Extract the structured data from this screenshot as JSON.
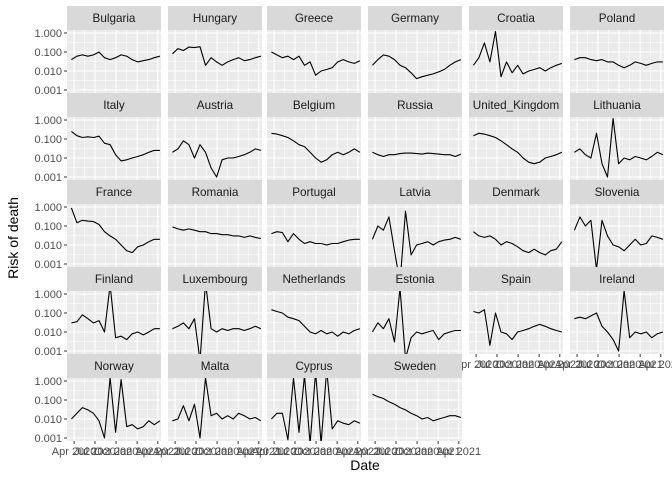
{
  "chart_data": {
    "type": "line",
    "xlabel": "Date",
    "ylabel": "Risk of death",
    "y_scale": "log10",
    "ylim": [
      0.001,
      1.0
    ],
    "y_ticks": [
      1.0,
      0.1,
      0.01,
      0.001
    ],
    "y_tick_labels": [
      "1.000",
      "0.100",
      "0.010",
      "0.001"
    ],
    "x_range": [
      "2020-03-01",
      "2021-04-15"
    ],
    "x_ticks": [
      "2020-04-01",
      "2020-07-01",
      "2020-10-01",
      "2021-01-01",
      "2021-04-01"
    ],
    "x_tick_labels": [
      "Apr 2020",
      "Jul 2020",
      "Oct 2020",
      "Jan 2021",
      "Apr 2021"
    ],
    "grid": true,
    "facets": [
      {
        "name": "Bulgaria",
        "values": [
          0.04,
          0.06,
          0.07,
          0.06,
          0.07,
          0.1,
          0.05,
          0.04,
          0.05,
          0.07,
          0.06,
          0.04,
          0.03,
          0.035,
          0.04,
          0.05,
          0.06
        ]
      },
      {
        "name": "Hungary",
        "values": [
          0.08,
          0.15,
          0.12,
          0.18,
          0.17,
          0.19,
          0.02,
          0.05,
          0.03,
          0.02,
          0.03,
          0.04,
          0.05,
          0.035,
          0.04,
          0.05,
          0.06
        ]
      },
      {
        "name": "Greece",
        "values": [
          0.1,
          0.07,
          0.05,
          0.06,
          0.04,
          0.06,
          0.02,
          0.03,
          0.006,
          0.01,
          0.012,
          0.015,
          0.03,
          0.04,
          0.03,
          0.025,
          0.035
        ]
      },
      {
        "name": "Germany",
        "values": [
          0.02,
          0.04,
          0.07,
          0.06,
          0.04,
          0.02,
          0.015,
          0.008,
          0.004,
          0.005,
          0.006,
          0.007,
          0.009,
          0.012,
          0.02,
          0.03,
          0.04
        ]
      },
      {
        "name": "Croatia",
        "values": [
          0.02,
          0.05,
          0.3,
          0.03,
          1.2,
          0.005,
          0.03,
          0.008,
          0.02,
          0.007,
          0.01,
          0.012,
          0.015,
          0.01,
          0.015,
          0.02,
          0.025
        ]
      },
      {
        "name": "Poland",
        "values": [
          0.04,
          0.05,
          0.05,
          0.04,
          0.035,
          0.04,
          0.03,
          0.03,
          0.02,
          0.015,
          0.02,
          0.03,
          0.025,
          0.02,
          0.025,
          0.03,
          0.03
        ]
      },
      {
        "name": "Italy",
        "values": [
          0.25,
          0.15,
          0.12,
          0.13,
          0.12,
          0.14,
          0.06,
          0.05,
          0.015,
          0.007,
          0.008,
          0.01,
          0.012,
          0.015,
          0.02,
          0.025,
          0.025
        ]
      },
      {
        "name": "Austria",
        "values": [
          0.02,
          0.03,
          0.08,
          0.05,
          0.01,
          0.05,
          0.02,
          0.003,
          0.001,
          0.008,
          0.01,
          0.01,
          0.012,
          0.015,
          0.02,
          0.03,
          0.025
        ]
      },
      {
        "name": "Belgium",
        "values": [
          0.2,
          0.18,
          0.15,
          0.12,
          0.08,
          0.05,
          0.04,
          0.02,
          0.01,
          0.006,
          0.008,
          0.015,
          0.02,
          0.015,
          0.02,
          0.03,
          0.02
        ]
      },
      {
        "name": "Russia",
        "values": [
          0.02,
          0.015,
          0.012,
          0.015,
          0.015,
          0.017,
          0.018,
          0.018,
          0.017,
          0.016,
          0.018,
          0.017,
          0.016,
          0.015,
          0.015,
          0.012,
          0.016
        ]
      },
      {
        "name": "United_Kingdom",
        "values": [
          0.15,
          0.2,
          0.18,
          0.15,
          0.12,
          0.08,
          0.05,
          0.03,
          0.02,
          0.01,
          0.006,
          0.005,
          0.006,
          0.01,
          0.012,
          0.015,
          0.02
        ]
      },
      {
        "name": "Lithuania",
        "values": [
          0.02,
          0.03,
          0.015,
          0.01,
          0.2,
          0.005,
          0.001,
          1.2,
          0.005,
          0.01,
          0.008,
          0.012,
          0.01,
          0.008,
          0.012,
          0.02,
          0.015
        ]
      },
      {
        "name": "France",
        "values": [
          0.9,
          0.15,
          0.2,
          0.18,
          0.17,
          0.12,
          0.05,
          0.03,
          0.02,
          0.01,
          0.005,
          0.004,
          0.008,
          0.01,
          0.015,
          0.02,
          0.02
        ]
      },
      {
        "name": "Romania",
        "values": [
          0.09,
          0.07,
          0.06,
          0.07,
          0.06,
          0.05,
          0.05,
          0.04,
          0.04,
          0.035,
          0.035,
          0.03,
          0.03,
          0.025,
          0.03,
          0.025,
          0.022
        ]
      },
      {
        "name": "Portugal",
        "values": [
          0.04,
          0.05,
          0.045,
          0.015,
          0.04,
          0.02,
          0.012,
          0.015,
          0.012,
          0.012,
          0.01,
          0.012,
          0.012,
          0.015,
          0.018,
          0.02,
          0.02
        ]
      },
      {
        "name": "Latvia",
        "values": [
          0.02,
          0.1,
          0.06,
          0.3,
          0.005,
          0.0001,
          0.6,
          0.003,
          0.01,
          0.012,
          0.015,
          0.01,
          0.015,
          0.018,
          0.02,
          0.025,
          0.02
        ]
      },
      {
        "name": "Denmark",
        "values": [
          0.05,
          0.03,
          0.025,
          0.03,
          0.02,
          0.01,
          0.015,
          0.012,
          0.008,
          0.005,
          0.004,
          0.006,
          0.004,
          0.003,
          0.005,
          0.006,
          0.015
        ]
      },
      {
        "name": "Slovenia",
        "values": [
          0.06,
          0.3,
          0.1,
          0.2,
          0.0005,
          0.2,
          0.03,
          0.01,
          0.008,
          0.005,
          0.01,
          0.02,
          0.01,
          0.012,
          0.03,
          0.025,
          0.02
        ]
      },
      {
        "name": "Finland",
        "values": [
          0.03,
          0.035,
          0.08,
          0.05,
          0.03,
          0.04,
          0.01,
          3.0,
          0.005,
          0.006,
          0.004,
          0.008,
          0.01,
          0.007,
          0.01,
          0.015,
          0.015
        ]
      },
      {
        "name": "Luxembourg",
        "values": [
          0.015,
          0.02,
          0.03,
          0.015,
          0.05,
          0.0003,
          4.0,
          0.015,
          0.01,
          0.015,
          0.012,
          0.015,
          0.015,
          0.012,
          0.015,
          0.02,
          0.015
        ]
      },
      {
        "name": "Netherlands",
        "values": [
          0.15,
          0.12,
          0.1,
          0.06,
          0.05,
          0.04,
          0.02,
          0.01,
          0.008,
          0.012,
          0.008,
          0.01,
          0.006,
          0.01,
          0.008,
          0.012,
          0.015
        ]
      },
      {
        "name": "Estonia",
        "values": [
          0.01,
          0.03,
          0.015,
          0.05,
          0.003,
          2.0,
          0.0004,
          0.005,
          0.01,
          0.008,
          0.01,
          0.012,
          0.004,
          0.008,
          0.01,
          0.012,
          0.012
        ]
      },
      {
        "name": "Spain",
        "values": [
          0.12,
          0.1,
          0.15,
          0.002,
          0.1,
          0.01,
          0.008,
          0.004,
          0.01,
          0.012,
          0.015,
          0.02,
          0.025,
          0.02,
          0.015,
          0.012,
          0.01
        ]
      },
      {
        "name": "Ireland",
        "values": [
          0.05,
          0.06,
          0.05,
          0.07,
          0.1,
          0.02,
          0.01,
          0.004,
          0.001,
          1.5,
          0.005,
          0.01,
          0.008,
          0.01,
          0.005,
          0.008,
          0.01
        ]
      },
      {
        "name": "Norway",
        "values": [
          0.01,
          0.02,
          0.04,
          0.03,
          0.02,
          0.008,
          0.001,
          1.5,
          0.002,
          1.2,
          0.004,
          0.005,
          0.003,
          0.004,
          0.008,
          0.005,
          0.008
        ]
      },
      {
        "name": "Malta",
        "values": [
          0.008,
          0.01,
          0.05,
          0.008,
          0.06,
          0.001,
          1.5,
          0.015,
          0.02,
          0.01,
          0.015,
          0.01,
          0.02,
          0.015,
          0.01,
          0.012,
          0.008
        ]
      },
      {
        "name": "Cyprus",
        "values": [
          0.01,
          0.02,
          0.02,
          0.0008,
          1.5,
          0.002,
          2.0,
          0.0005,
          3.0,
          0.0005,
          4.0,
          0.003,
          0.008,
          0.006,
          0.005,
          0.008,
          0.006
        ]
      },
      {
        "name": "Sweden",
        "values": [
          0.2,
          0.15,
          0.12,
          0.08,
          0.06,
          0.04,
          0.03,
          0.02,
          0.015,
          0.01,
          0.012,
          0.008,
          0.01,
          0.012,
          0.015,
          0.015,
          0.012
        ]
      }
    ]
  }
}
